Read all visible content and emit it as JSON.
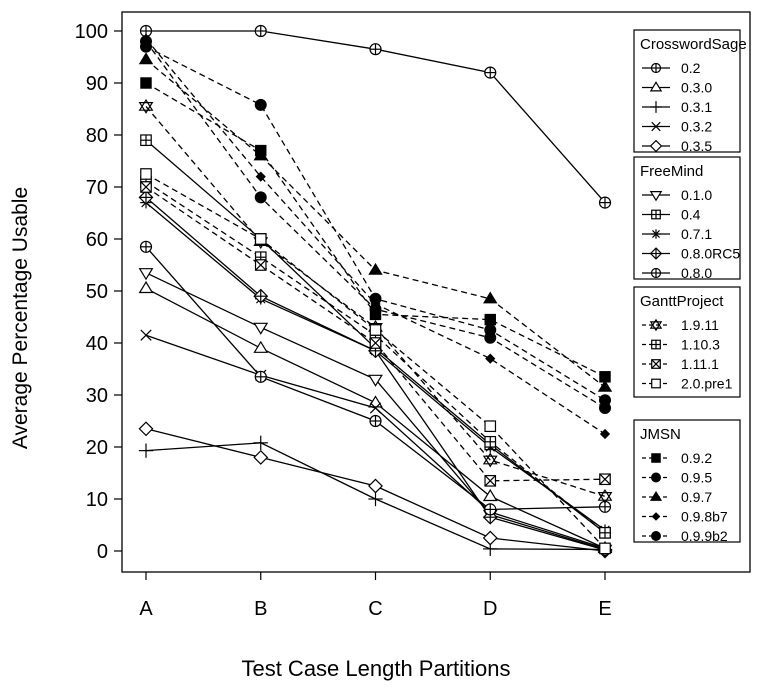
{
  "chart_data": {
    "type": "line",
    "title": "",
    "xlabel": "Test Case Length Partitions",
    "ylabel": "Average Percentage Usable",
    "categories": [
      "A",
      "B",
      "C",
      "D",
      "E"
    ],
    "ylim": [
      0,
      100
    ],
    "yticks": [
      0,
      10,
      20,
      30,
      40,
      50,
      60,
      70,
      80,
      90,
      100
    ],
    "legend_placement": "right",
    "groups": [
      {
        "name": "CrosswordSage",
        "series": [
          {
            "name": "0.2",
            "marker": "circle-plus",
            "line": "solid",
            "values": [
              100,
              100,
              96.5,
              92,
              67
            ]
          },
          {
            "name": "0.3.0",
            "marker": "triangle-open",
            "line": "solid",
            "values": [
              50.5,
              39,
              28.5,
              10.5,
              0.5
            ]
          },
          {
            "name": "0.3.1",
            "marker": "plus",
            "line": "solid",
            "values": [
              19.3,
              20.8,
              10,
              0.4,
              0.3
            ]
          },
          {
            "name": "0.3.2",
            "marker": "cross",
            "line": "solid",
            "values": [
              41.5,
              33.8,
              27.5,
              7.5,
              0.5
            ]
          },
          {
            "name": "0.3.5",
            "marker": "diamond-open",
            "line": "solid",
            "values": [
              23.5,
              18,
              12.5,
              2.5,
              0
            ]
          }
        ]
      },
      {
        "name": "FreeMind",
        "series": [
          {
            "name": "0.1.0",
            "marker": "triangle-down-open",
            "line": "solid",
            "values": [
              53.5,
              43,
              33,
              7,
              0.3
            ]
          },
          {
            "name": "0.4",
            "marker": "square-plus",
            "line": "solid",
            "values": [
              79,
              60,
              39,
              20.5,
              3.5
            ]
          },
          {
            "name": "0.7.1",
            "marker": "asterisk",
            "line": "solid",
            "values": [
              67,
              48.5,
              38.5,
              20,
              4
            ]
          },
          {
            "name": "0.8.0RC5",
            "marker": "diamond-plus",
            "line": "solid",
            "values": [
              68,
              49,
              38.5,
              6.5,
              0.2
            ]
          },
          {
            "name": "0.8.0",
            "marker": "circle-plus",
            "line": "solid",
            "values": [
              58.5,
              33.5,
              25,
              8,
              8.5
            ]
          }
        ]
      },
      {
        "name": "GanttProject",
        "series": [
          {
            "name": "1.9.11",
            "marker": "star-of-david",
            "line": "dashed",
            "values": [
              85.5,
              59.5,
              43,
              17.5,
              10.5
            ]
          },
          {
            "name": "1.10.3",
            "marker": "square-plus",
            "line": "dashed",
            "values": [
              71,
              56.5,
              41.5,
              21,
              3.5
            ]
          },
          {
            "name": "1.11.1",
            "marker": "square-x",
            "line": "dashed",
            "values": [
              70,
              55,
              40,
              13.5,
              13.8
            ]
          },
          {
            "name": "2.0.pre1",
            "marker": "square-open",
            "line": "dashed",
            "values": [
              72.5,
              60,
              42.5,
              24,
              0.5
            ]
          }
        ]
      },
      {
        "name": "JMSN",
        "series": [
          {
            "name": "0.9.2",
            "marker": "square-filled",
            "line": "dashed",
            "values": [
              90,
              77,
              45.5,
              44.5,
              33.5
            ]
          },
          {
            "name": "0.9.5",
            "marker": "circle-filled",
            "line": "dashed",
            "values": [
              97,
              85.8,
              48.5,
              42.5,
              29
            ]
          },
          {
            "name": "0.9.7",
            "marker": "triangle-filled",
            "line": "dashed",
            "values": [
              94.5,
              76,
              54,
              48.5,
              31.5
            ]
          },
          {
            "name": "0.9.8b7",
            "marker": "diamond-small-filled",
            "line": "dashed",
            "values": [
              98.5,
              72,
              47.5,
              37,
              22.5
            ]
          },
          {
            "name": "0.9.9b2",
            "marker": "circle-filled",
            "line": "dashed",
            "values": [
              98,
              68,
              46.5,
              41,
              27.5
            ]
          }
        ]
      }
    ]
  }
}
